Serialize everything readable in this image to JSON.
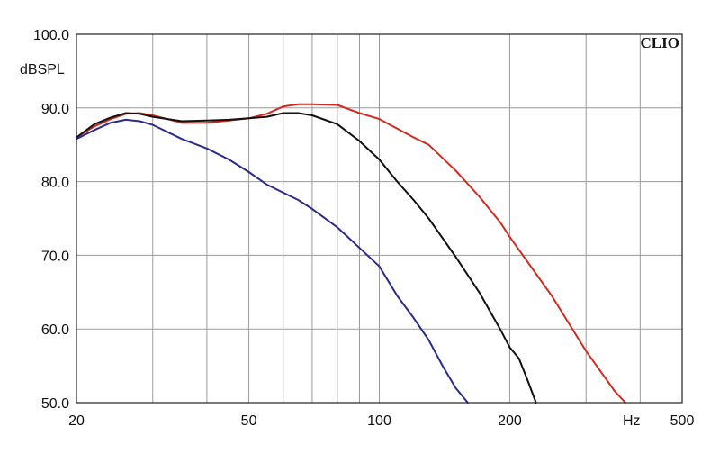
{
  "chart_data": {
    "type": "line",
    "brand": "CLIO",
    "ylabel": "dBSPL",
    "xlabel": "Hz",
    "x_scale": "log",
    "xlim": [
      20,
      500
    ],
    "ylim": [
      50,
      100
    ],
    "grid": true,
    "x_tick_labels": [
      "20",
      "50",
      "100",
      "200",
      "500"
    ],
    "x_tick_values": [
      20,
      50,
      100,
      200,
      500
    ],
    "y_tick_labels": [
      "50.0",
      "60.0",
      "70.0",
      "80.0",
      "90.0",
      "100.0"
    ],
    "y_tick_values": [
      50,
      60,
      70,
      80,
      90,
      100
    ],
    "series": [
      {
        "color": "#d22a1e",
        "x": [
          20,
          22,
          24,
          26,
          28,
          30,
          35,
          40,
          45,
          50,
          55,
          60,
          65,
          70,
          80,
          90,
          100,
          110,
          120,
          130,
          150,
          170,
          190,
          200,
          250,
          300,
          350,
          370
        ],
        "y": [
          86.0,
          87.5,
          88.5,
          89.2,
          89.3,
          89.0,
          88.0,
          88.0,
          88.3,
          88.6,
          89.2,
          90.2,
          90.5,
          90.5,
          90.4,
          89.3,
          88.5,
          87.2,
          86.0,
          85.0,
          81.5,
          78.0,
          74.5,
          72.5,
          64.5,
          57.0,
          51.5,
          50.0
        ]
      },
      {
        "color": "#111111",
        "x": [
          20,
          22,
          24,
          26,
          28,
          30,
          35,
          40,
          45,
          50,
          55,
          60,
          65,
          70,
          80,
          90,
          100,
          110,
          120,
          130,
          150,
          170,
          190,
          200,
          210,
          220,
          230
        ],
        "y": [
          86.0,
          87.8,
          88.7,
          89.3,
          89.2,
          88.8,
          88.2,
          88.3,
          88.4,
          88.6,
          88.8,
          89.3,
          89.3,
          89.0,
          87.8,
          85.5,
          83.0,
          80.0,
          77.5,
          75.0,
          69.8,
          65.0,
          60.0,
          57.5,
          56.0,
          53.0,
          50.0
        ]
      },
      {
        "color": "#2c2a8a",
        "x": [
          20,
          22,
          24,
          26,
          28,
          30,
          35,
          40,
          45,
          50,
          55,
          60,
          65,
          70,
          80,
          90,
          100,
          110,
          120,
          130,
          140,
          150,
          160
        ],
        "y": [
          85.8,
          87.0,
          88.0,
          88.4,
          88.2,
          87.7,
          85.8,
          84.5,
          83.0,
          81.3,
          79.6,
          78.5,
          77.5,
          76.3,
          73.8,
          71.0,
          68.5,
          64.5,
          61.5,
          58.5,
          55.0,
          52.0,
          50.0
        ]
      }
    ]
  }
}
